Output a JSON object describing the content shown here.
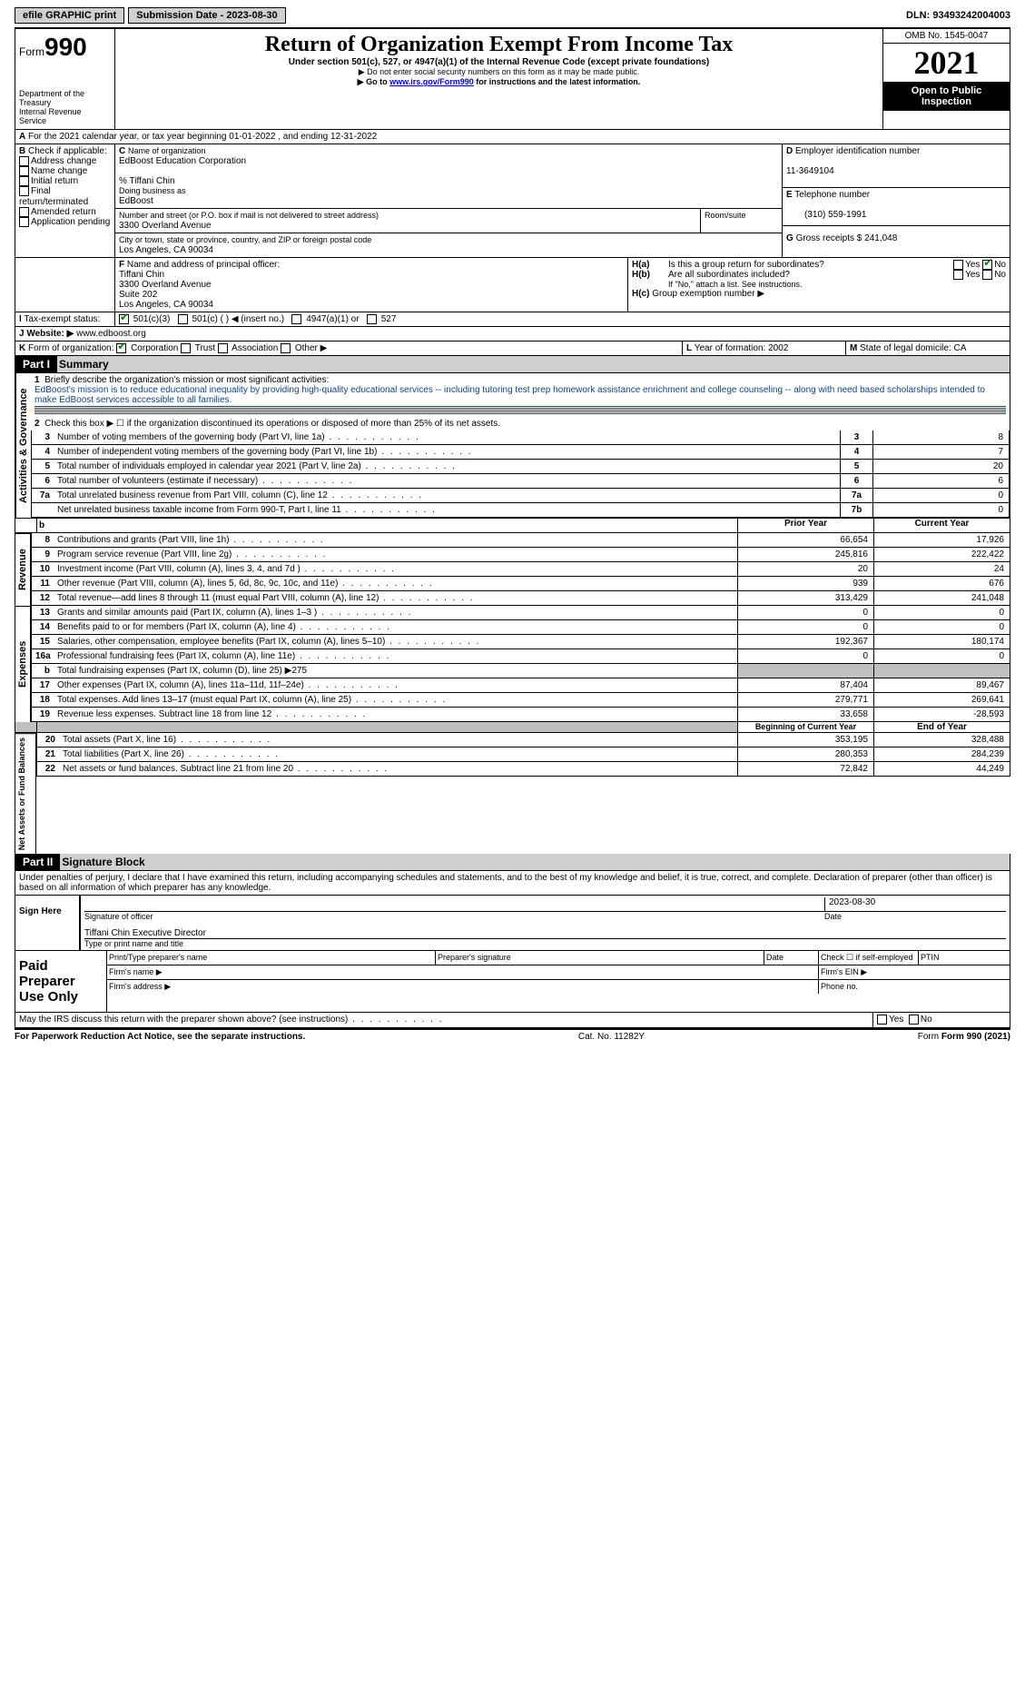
{
  "topbar": {
    "efile": "efile GRAPHIC print",
    "subdate_label": "Submission Date - 2023-08-30",
    "dln": "DLN: 93493242004003"
  },
  "header": {
    "form_word": "Form",
    "form_num": "990",
    "dept": "Department of the Treasury",
    "irs": "Internal Revenue Service",
    "title": "Return of Organization Exempt From Income Tax",
    "sub1": "Under section 501(c), 527, or 4947(a)(1) of the Internal Revenue Code (except private foundations)",
    "sub2": "▶ Do not enter social security numbers on this form as it may be made public.",
    "sub3_pre": "▶ Go to ",
    "sub3_link": "www.irs.gov/Form990",
    "sub3_post": " for instructions and the latest information.",
    "omb": "OMB No. 1545-0047",
    "year": "2021",
    "open": "Open to Public Inspection"
  },
  "A": {
    "text": "For the 2021 calendar year, or tax year beginning 01-01-2022   , and ending 12-31-2022"
  },
  "B": {
    "label": "Check if applicable:",
    "addr": "Address change",
    "name": "Name change",
    "init": "Initial return",
    "final": "Final return/terminated",
    "amend": "Amended return",
    "app": "Application pending"
  },
  "C": {
    "label": "Name of organization",
    "org": "EdBoost Education Corporation",
    "care": "% Tiffani Chin",
    "dba_lbl": "Doing business as",
    "dba": "EdBoost",
    "street_lbl": "Number and street (or P.O. box if mail is not delivered to street address)",
    "street": "3300 Overland Avenue",
    "room_lbl": "Room/suite",
    "city_lbl": "City or town, state or province, country, and ZIP or foreign postal code",
    "city": "Los Angeles, CA  90034"
  },
  "D": {
    "label": "Employer identification number",
    "val": "11-3649104"
  },
  "E": {
    "label": "Telephone number",
    "val": "(310) 559-1991"
  },
  "F": {
    "label": "Name and address of principal officer:",
    "name": "Tiffani Chin",
    "l1": "3300 Overland Avenue",
    "l2": "Suite 202",
    "l3": "Los Angeles, CA  90034"
  },
  "G": {
    "label": "Gross receipts $",
    "val": "241,048"
  },
  "H": {
    "a": "Is this a group return for subordinates?",
    "b": "Are all subordinates included?",
    "bnote": "If \"No,\" attach a list. See instructions.",
    "c": "Group exemption number ▶",
    "yes": "Yes",
    "no": "No"
  },
  "I": {
    "label": "Tax-exempt status:",
    "o1": "501(c)(3)",
    "o2": "501(c) (  ) ◀ (insert no.)",
    "o3": "4947(a)(1) or",
    "o4": "527"
  },
  "J": {
    "label": "Website: ▶",
    "val": "www.edboost.org"
  },
  "K": {
    "label": "Form of organization:",
    "corp": "Corporation",
    "trust": "Trust",
    "assoc": "Association",
    "other": "Other ▶"
  },
  "L": {
    "label": "Year of formation:",
    "val": "2002"
  },
  "M": {
    "label": "State of legal domicile:",
    "val": "CA"
  },
  "part1": {
    "hdr": "Part I",
    "title": "Summary"
  },
  "p1": {
    "l1_label": "Briefly describe the organization's mission or most significant activities:",
    "l1_text": "EdBoost's mission is to reduce educational inequality by providing high-quality educational services -- including tutoring test prep homework assistance enrichment and college counseling -- along with need based scholarships intended to make EdBoost services accessible to all families.",
    "l2": "Check this box ▶ ☐  if the organization discontinued its operations or disposed of more than 25% of its net assets.",
    "rows_single": [
      {
        "n": "3",
        "t": "Number of voting members of the governing body (Part VI, line 1a)",
        "lbl": "3",
        "v": "8"
      },
      {
        "n": "4",
        "t": "Number of independent voting members of the governing body (Part VI, line 1b)",
        "lbl": "4",
        "v": "7"
      },
      {
        "n": "5",
        "t": "Total number of individuals employed in calendar year 2021 (Part V, line 2a)",
        "lbl": "5",
        "v": "20"
      },
      {
        "n": "6",
        "t": "Total number of volunteers (estimate if necessary)",
        "lbl": "6",
        "v": "6"
      },
      {
        "n": "7a",
        "t": "Total unrelated business revenue from Part VIII, column (C), line 12",
        "lbl": "7a",
        "v": "0"
      },
      {
        "n": "",
        "t": "Net unrelated business taxable income from Form 990-T, Part I, line 11",
        "lbl": "7b",
        "v": "0"
      }
    ],
    "col_hdr_prior": "Prior Year",
    "col_hdr_curr": "Current Year",
    "rev": [
      {
        "n": "8",
        "t": "Contributions and grants (Part VIII, line 1h)",
        "p": "66,654",
        "c": "17,926"
      },
      {
        "n": "9",
        "t": "Program service revenue (Part VIII, line 2g)",
        "p": "245,816",
        "c": "222,422"
      },
      {
        "n": "10",
        "t": "Investment income (Part VIII, column (A), lines 3, 4, and 7d )",
        "p": "20",
        "c": "24"
      },
      {
        "n": "11",
        "t": "Other revenue (Part VIII, column (A), lines 5, 6d, 8c, 9c, 10c, and 11e)",
        "p": "939",
        "c": "676"
      },
      {
        "n": "12",
        "t": "Total revenue—add lines 8 through 11 (must equal Part VIII, column (A), line 12)",
        "p": "313,429",
        "c": "241,048"
      }
    ],
    "exp": [
      {
        "n": "13",
        "t": "Grants and similar amounts paid (Part IX, column (A), lines 1–3 )",
        "p": "0",
        "c": "0"
      },
      {
        "n": "14",
        "t": "Benefits paid to or for members (Part IX, column (A), line 4)",
        "p": "0",
        "c": "0"
      },
      {
        "n": "15",
        "t": "Salaries, other compensation, employee benefits (Part IX, column (A), lines 5–10)",
        "p": "192,367",
        "c": "180,174"
      },
      {
        "n": "16a",
        "t": "Professional fundraising fees (Part IX, column (A), line 11e)",
        "p": "0",
        "c": "0"
      },
      {
        "n": "b",
        "t": "Total fundraising expenses (Part IX, column (D), line 25) ▶275",
        "p": "",
        "c": "",
        "gray": true
      },
      {
        "n": "17",
        "t": "Other expenses (Part IX, column (A), lines 11a–11d, 11f–24e)",
        "p": "87,404",
        "c": "89,467"
      },
      {
        "n": "18",
        "t": "Total expenses. Add lines 13–17 (must equal Part IX, column (A), line 25)",
        "p": "279,771",
        "c": "269,641"
      },
      {
        "n": "19",
        "t": "Revenue less expenses. Subtract line 18 from line 12",
        "p": "33,658",
        "c": "-28,593"
      }
    ],
    "col_hdr_begin": "Beginning of Current Year",
    "col_hdr_end": "End of Year",
    "net": [
      {
        "n": "20",
        "t": "Total assets (Part X, line 16)",
        "p": "353,195",
        "c": "328,488"
      },
      {
        "n": "21",
        "t": "Total liabilities (Part X, line 26)",
        "p": "280,353",
        "c": "284,239"
      },
      {
        "n": "22",
        "t": "Net assets or fund balances. Subtract line 21 from line 20",
        "p": "72,842",
        "c": "44,249"
      }
    ],
    "side_gov": "Activities & Governance",
    "side_rev": "Revenue",
    "side_exp": "Expenses",
    "side_net": "Net Assets or Fund Balances"
  },
  "part2": {
    "hdr": "Part II",
    "title": "Signature Block"
  },
  "sig": {
    "perjury": "Under penalties of perjury, I declare that I have examined this return, including accompanying schedules and statements, and to the best of my knowledge and belief, it is true, correct, and complete. Declaration of preparer (other than officer) is based on all information of which preparer has any knowledge.",
    "sign_here": "Sign Here",
    "sig_officer": "Signature of officer",
    "date": "Date",
    "date_val": "2023-08-30",
    "name_title": "Tiffani Chin  Executive Director",
    "type_name": "Type or print name and title",
    "paid": "Paid Preparer Use Only",
    "prep_name": "Print/Type preparer's name",
    "prep_sig": "Preparer's signature",
    "prep_date": "Date",
    "self_emp": "Check ☐ if self-employed",
    "ptin": "PTIN",
    "firm_name": "Firm's name  ▶",
    "firm_ein": "Firm's EIN ▶",
    "firm_addr": "Firm's address ▶",
    "phone": "Phone no.",
    "discuss": "May the IRS discuss this return with the preparer shown above? (see instructions)",
    "yes": "Yes",
    "no": "No"
  },
  "footer": {
    "pra": "For Paperwork Reduction Act Notice, see the separate instructions.",
    "cat": "Cat. No. 11282Y",
    "form": "Form 990 (2021)"
  },
  "colors": {
    "accent": "#104488",
    "gray": "#c0c0c0"
  }
}
